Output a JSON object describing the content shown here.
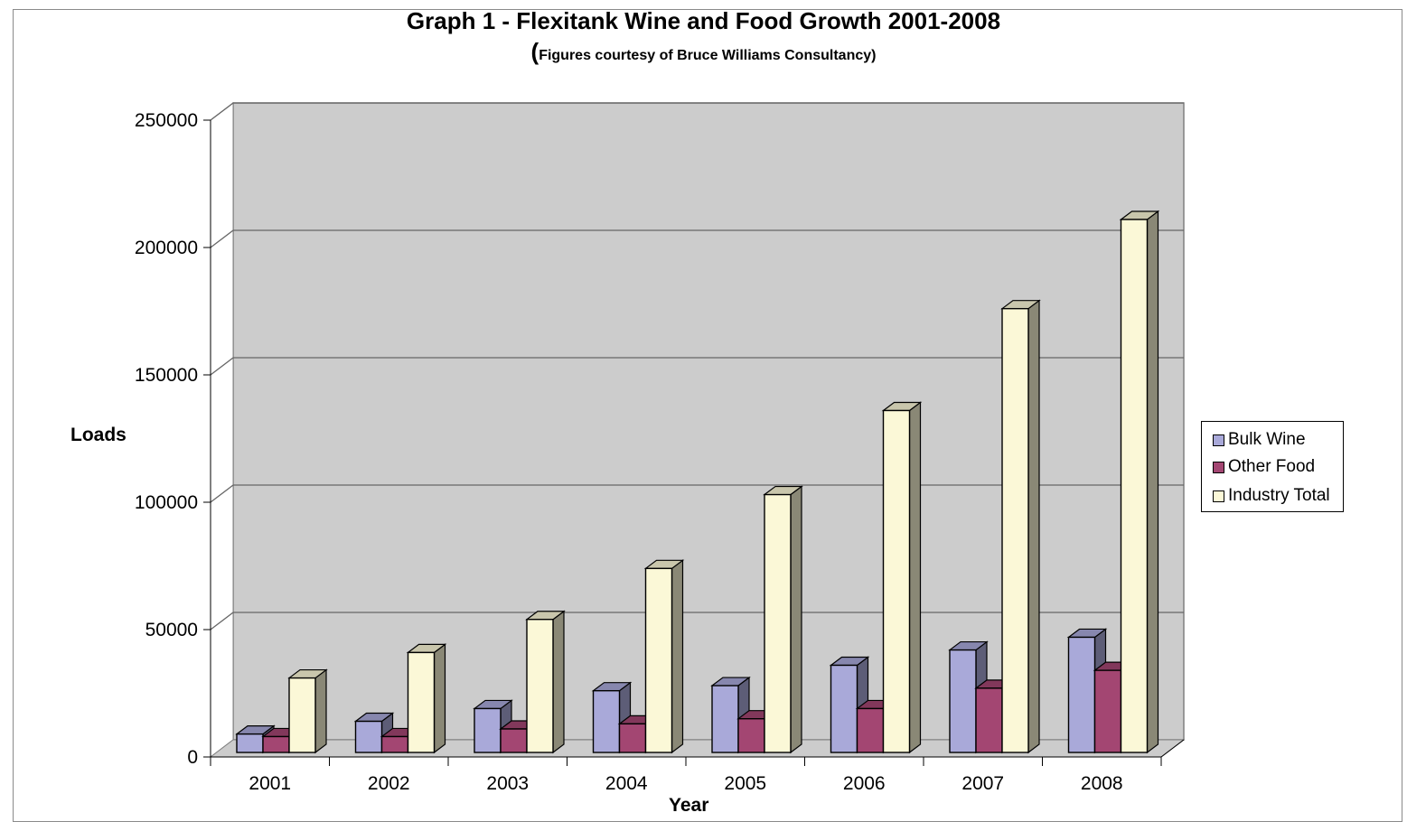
{
  "chart_data": {
    "type": "bar",
    "title": "Graph 1 - Flexitank Wine and Food Growth 2001-2008",
    "subtitle": "Figures courtesy of Bruce Williams Consultancy",
    "xlabel": "Year",
    "ylabel": "Loads",
    "categories": [
      "2001",
      "2002",
      "2003",
      "2004",
      "2005",
      "2006",
      "2007",
      "2008"
    ],
    "ylim": [
      0,
      250000
    ],
    "yticks": [
      "0",
      "50000",
      "100000",
      "150000",
      "200000",
      "250000"
    ],
    "grid": true,
    "legend_position": "right",
    "three_d": true,
    "series": [
      {
        "name": "Bulk Wine",
        "color": "#a9a9d9",
        "values": [
          9000,
          14000,
          19000,
          26000,
          28000,
          36000,
          42000,
          47000
        ]
      },
      {
        "name": "Other Food",
        "color": "#a34672",
        "values": [
          8000,
          8000,
          11000,
          13000,
          15000,
          19000,
          27000,
          34000
        ]
      },
      {
        "name": "Industry Total",
        "color": "#fbf8d7",
        "values": [
          31000,
          41000,
          54000,
          74000,
          103000,
          136000,
          176000,
          211000
        ]
      }
    ]
  }
}
